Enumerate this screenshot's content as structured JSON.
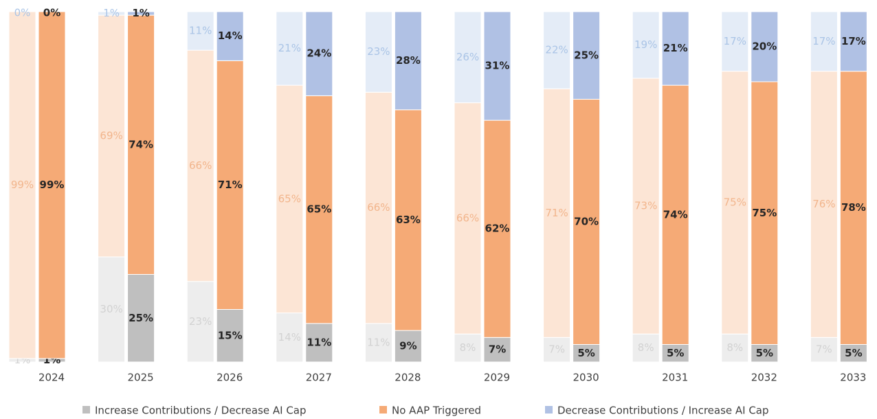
{
  "chart_data": {
    "type": "bar",
    "stacked": true,
    "categories": [
      "2024",
      "2025",
      "2026",
      "2027",
      "2028",
      "2029",
      "2030",
      "2031",
      "2032",
      "2033"
    ],
    "ylim": [
      0,
      100
    ],
    "series": [
      {
        "name": "Increase Contributions / Decrease AI Cap",
        "color": "#bfbfbf",
        "prior_color": "#ededed",
        "prior_label_color": "#d2d2d2",
        "values": [
          1,
          25,
          15,
          11,
          9,
          7,
          5,
          5,
          5,
          5
        ],
        "value_labels": [
          "1%",
          "25%",
          "15%",
          "11%",
          "9%",
          "7%",
          "5%",
          "5%",
          "5%",
          "5%"
        ],
        "prior_values": [
          1,
          30,
          23,
          14,
          11,
          8,
          7,
          8,
          8,
          7
        ],
        "prior_value_labels": [
          "1%",
          "30%",
          "23%",
          "14%",
          "11%",
          "8%",
          "7%",
          "8%",
          "8%",
          "7%"
        ]
      },
      {
        "name": "No AAP Triggered",
        "color": "#f5aa76",
        "prior_color": "#fce5d5",
        "prior_label_color": "#f2b58c",
        "values": [
          99,
          74,
          71,
          65,
          63,
          62,
          70,
          74,
          75,
          78
        ],
        "value_labels": [
          "99%",
          "74%",
          "71%",
          "65%",
          "63%",
          "62%",
          "70%",
          "74%",
          "75%",
          "78%"
        ],
        "prior_values": [
          99,
          69,
          66,
          65,
          66,
          66,
          71,
          73,
          75,
          76
        ],
        "prior_value_labels": [
          "99%",
          "69%",
          "66%",
          "65%",
          "66%",
          "66%",
          "71%",
          "73%",
          "75%",
          "76%"
        ]
      },
      {
        "name": "Decrease Contributions / Increase AI Cap",
        "color": "#b0c1e4",
        "prior_color": "#e4ecf7",
        "prior_label_color": "#aac4e6",
        "values": [
          0,
          1,
          14,
          24,
          28,
          31,
          25,
          21,
          20,
          17
        ],
        "value_labels": [
          "0%",
          "1%",
          "14%",
          "24%",
          "28%",
          "31%",
          "25%",
          "21%",
          "20%",
          "17%"
        ],
        "prior_values": [
          0,
          1,
          11,
          21,
          23,
          26,
          22,
          19,
          17,
          17
        ],
        "prior_value_labels": [
          "0%",
          "1%",
          "11%",
          "21%",
          "23%",
          "26%",
          "22%",
          "19%",
          "17%",
          "17%"
        ]
      }
    ]
  }
}
